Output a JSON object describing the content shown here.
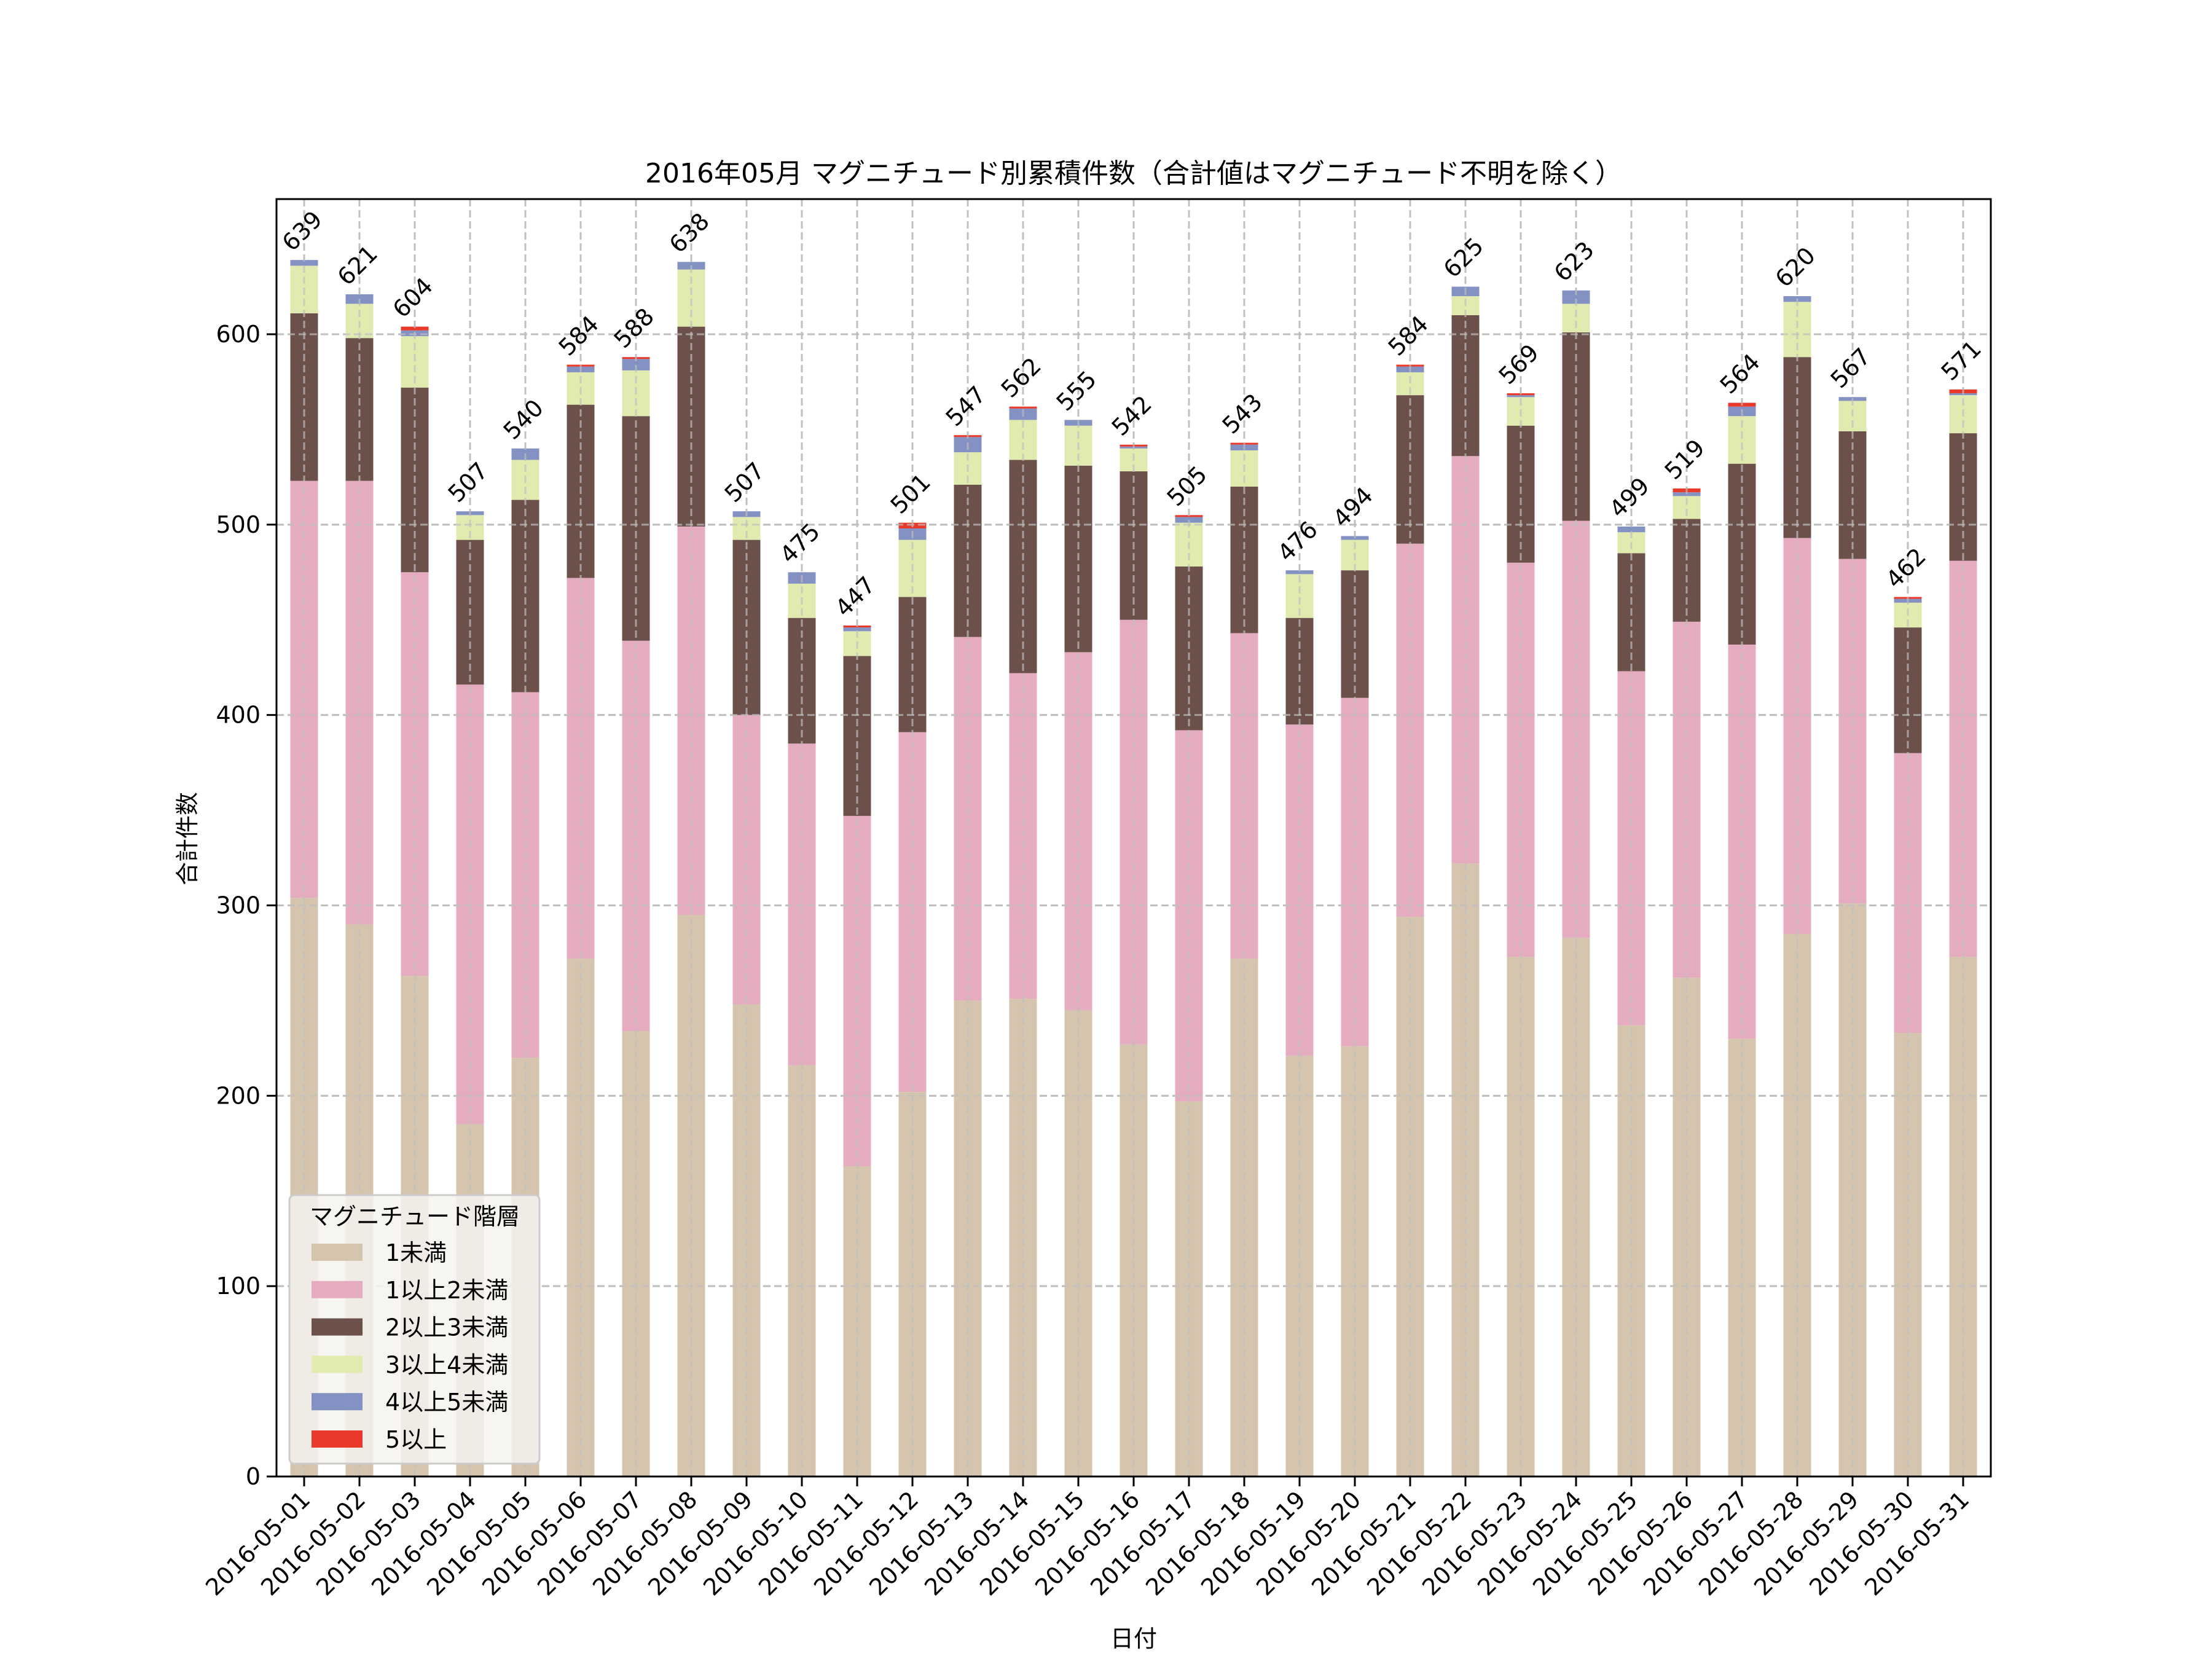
{
  "chart_data": {
    "type": "bar",
    "stacked": true,
    "title": "2016年05月 マグニチュード別累積件数（合計値はマグニチュード不明を除く）",
    "xlabel": "日付",
    "ylabel": "合計件数",
    "ylim": [
      0,
      671
    ],
    "yticks": [
      0,
      100,
      200,
      300,
      400,
      500,
      600
    ],
    "grid": true,
    "legend": {
      "title": "マグニチュード階層",
      "placement": "lower-left"
    },
    "categories": [
      "2016-05-01",
      "2016-05-02",
      "2016-05-03",
      "2016-05-04",
      "2016-05-05",
      "2016-05-06",
      "2016-05-07",
      "2016-05-08",
      "2016-05-09",
      "2016-05-10",
      "2016-05-11",
      "2016-05-12",
      "2016-05-13",
      "2016-05-14",
      "2016-05-15",
      "2016-05-16",
      "2016-05-17",
      "2016-05-18",
      "2016-05-19",
      "2016-05-20",
      "2016-05-21",
      "2016-05-22",
      "2016-05-23",
      "2016-05-24",
      "2016-05-25",
      "2016-05-26",
      "2016-05-27",
      "2016-05-28",
      "2016-05-29",
      "2016-05-30",
      "2016-05-31"
    ],
    "totals": [
      639,
      621,
      604,
      507,
      540,
      584,
      588,
      638,
      507,
      475,
      447,
      501,
      547,
      562,
      555,
      542,
      505,
      543,
      476,
      494,
      584,
      625,
      569,
      623,
      499,
      519,
      564,
      620,
      567,
      462,
      571
    ],
    "series": [
      {
        "name": "1未満",
        "color": "#d5c4ae",
        "values": [
          304,
          290,
          263,
          185,
          220,
          272,
          234,
          295,
          248,
          216,
          163,
          202,
          250,
          251,
          245,
          227,
          197,
          272,
          221,
          226,
          294,
          322,
          273,
          283,
          237,
          262,
          230,
          285,
          301,
          233,
          273
        ]
      },
      {
        "name": "1以上2未満",
        "color": "#e5abbe",
        "values": [
          219,
          233,
          212,
          231,
          192,
          200,
          205,
          204,
          152,
          169,
          184,
          189,
          191,
          171,
          188,
          223,
          195,
          171,
          174,
          183,
          196,
          214,
          207,
          219,
          186,
          187,
          207,
          208,
          181,
          147,
          208
        ]
      },
      {
        "name": "2以上3未満",
        "color": "#6c514b",
        "values": [
          88,
          75,
          97,
          76,
          101,
          91,
          118,
          105,
          92,
          66,
          84,
          71,
          80,
          112,
          98,
          78,
          86,
          77,
          56,
          67,
          78,
          74,
          72,
          99,
          62,
          54,
          95,
          95,
          67,
          66,
          67
        ]
      },
      {
        "name": "3以上4未満",
        "color": "#e1ebb0",
        "values": [
          25,
          18,
          27,
          13,
          21,
          17,
          24,
          30,
          12,
          18,
          13,
          30,
          17,
          21,
          21,
          12,
          23,
          19,
          23,
          16,
          12,
          10,
          15,
          15,
          11,
          12,
          25,
          29,
          16,
          13,
          20
        ]
      },
      {
        "name": "4以上5未満",
        "color": "#8491c3",
        "values": [
          3,
          5,
          3,
          2,
          6,
          3,
          6,
          4,
          3,
          6,
          2,
          6,
          8,
          6,
          3,
          1,
          3,
          3,
          2,
          2,
          3,
          5,
          1,
          7,
          3,
          2,
          5,
          3,
          2,
          2,
          1
        ]
      },
      {
        "name": "5以上",
        "color": "#e8392b",
        "values": [
          0,
          0,
          2,
          0,
          0,
          1,
          1,
          0,
          0,
          0,
          1,
          3,
          1,
          1,
          0,
          1,
          1,
          1,
          0,
          0,
          1,
          0,
          1,
          0,
          0,
          2,
          2,
          0,
          0,
          1,
          2
        ]
      }
    ]
  }
}
